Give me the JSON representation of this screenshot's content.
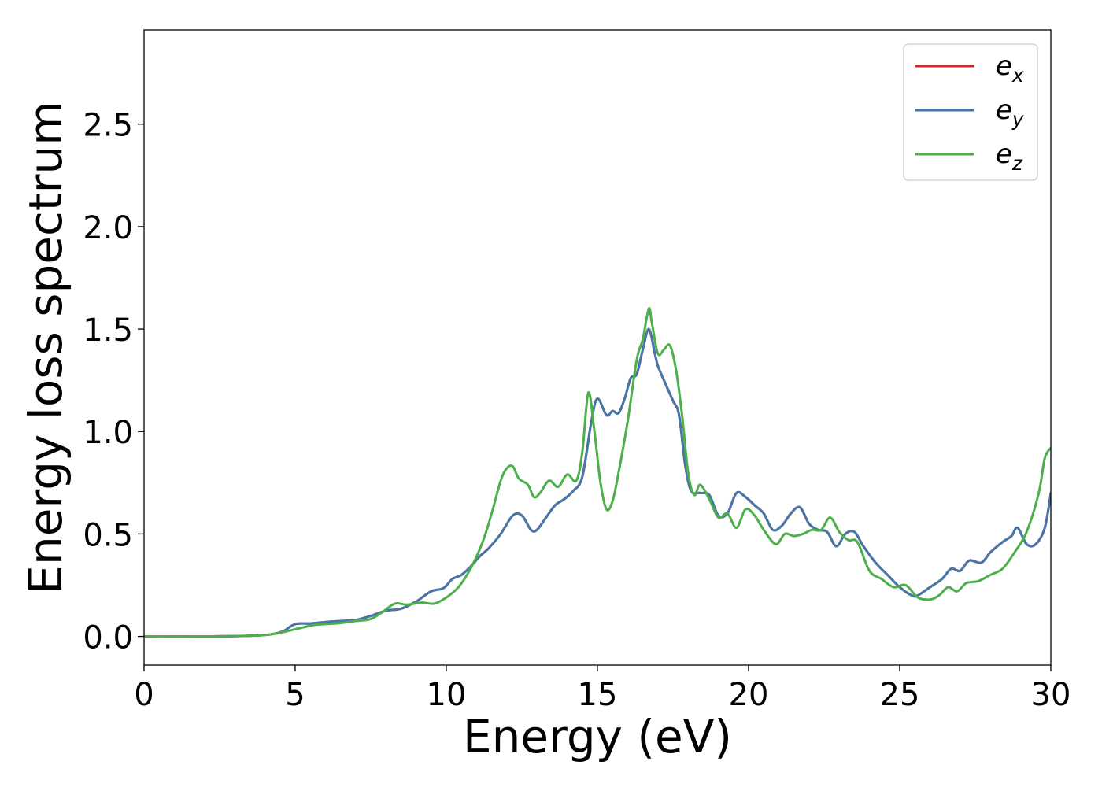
{
  "chart_data": {
    "type": "line",
    "title": "",
    "xlabel": "Energy (eV)",
    "ylabel": "Energy loss spectrum",
    "xlim": [
      0,
      30
    ],
    "ylim": [
      -0.14,
      2.96
    ],
    "xticks": [
      0,
      5,
      10,
      15,
      20,
      25,
      30
    ],
    "xtick_labels": [
      "0",
      "5",
      "10",
      "15",
      "20",
      "25",
      "30"
    ],
    "yticks": [
      0,
      0.5,
      1.0,
      1.5,
      2.0,
      2.5
    ],
    "ytick_labels": [
      "0.0",
      "0.5",
      "1.0",
      "1.5",
      "2.0",
      "2.5"
    ],
    "grid": false,
    "legend_position": "top-right",
    "series": [
      {
        "name": "e_x",
        "legend_base": "e",
        "legend_sub": "x",
        "color": "#d62728",
        "x": [
          0,
          2,
          3.5,
          4.2,
          4.6,
          5.0,
          5.5,
          6.0,
          6.5,
          7.0,
          7.5,
          8.0,
          8.5,
          9.0,
          9.5,
          9.9,
          10.2,
          10.5,
          10.8,
          11.1,
          11.4,
          11.8,
          12.2,
          12.5,
          12.8,
          13.0,
          13.3,
          13.6,
          13.9,
          14.2,
          14.5,
          14.8,
          15.0,
          15.3,
          15.5,
          15.7,
          15.9,
          16.1,
          16.3,
          16.5,
          16.7,
          16.9,
          17.0,
          17.2,
          17.5,
          17.7,
          17.9,
          18.1,
          18.4,
          18.7,
          19.0,
          19.3,
          19.6,
          19.9,
          20.2,
          20.5,
          20.8,
          21.1,
          21.4,
          21.7,
          22.0,
          22.3,
          22.6,
          22.9,
          23.2,
          23.5,
          23.8,
          24.2,
          24.6,
          25.0,
          25.4,
          25.6,
          26.0,
          26.4,
          26.7,
          27.0,
          27.3,
          27.7,
          28.0,
          28.4,
          28.7,
          28.9,
          29.2,
          29.5,
          29.8,
          30.0
        ],
        "y": [
          0,
          0,
          0.003,
          0.01,
          0.025,
          0.06,
          0.063,
          0.07,
          0.075,
          0.08,
          0.1,
          0.125,
          0.135,
          0.17,
          0.22,
          0.235,
          0.28,
          0.3,
          0.34,
          0.39,
          0.43,
          0.5,
          0.59,
          0.59,
          0.52,
          0.52,
          0.58,
          0.64,
          0.67,
          0.71,
          0.78,
          1.05,
          1.16,
          1.08,
          1.1,
          1.09,
          1.16,
          1.26,
          1.28,
          1.4,
          1.5,
          1.38,
          1.32,
          1.25,
          1.15,
          1.08,
          0.84,
          0.71,
          0.7,
          0.69,
          0.59,
          0.6,
          0.7,
          0.68,
          0.64,
          0.6,
          0.52,
          0.54,
          0.6,
          0.63,
          0.55,
          0.52,
          0.51,
          0.44,
          0.5,
          0.51,
          0.44,
          0.36,
          0.3,
          0.24,
          0.2,
          0.2,
          0.24,
          0.28,
          0.33,
          0.32,
          0.37,
          0.36,
          0.41,
          0.46,
          0.49,
          0.53,
          0.45,
          0.45,
          0.53,
          0.7
        ]
      },
      {
        "name": "e_y",
        "legend_base": "e",
        "legend_sub": "y",
        "color": "#4477aa",
        "x": [
          0,
          2,
          3.5,
          4.2,
          4.6,
          5.0,
          5.5,
          6.0,
          6.5,
          7.0,
          7.5,
          8.0,
          8.5,
          9.0,
          9.5,
          9.9,
          10.2,
          10.5,
          10.8,
          11.1,
          11.4,
          11.8,
          12.2,
          12.5,
          12.8,
          13.0,
          13.3,
          13.6,
          13.9,
          14.2,
          14.5,
          14.8,
          15.0,
          15.3,
          15.5,
          15.7,
          15.9,
          16.1,
          16.3,
          16.5,
          16.7,
          16.9,
          17.0,
          17.2,
          17.5,
          17.7,
          17.9,
          18.1,
          18.4,
          18.7,
          19.0,
          19.3,
          19.6,
          19.9,
          20.2,
          20.5,
          20.8,
          21.1,
          21.4,
          21.7,
          22.0,
          22.3,
          22.6,
          22.9,
          23.2,
          23.5,
          23.8,
          24.2,
          24.6,
          25.0,
          25.4,
          25.6,
          26.0,
          26.4,
          26.7,
          27.0,
          27.3,
          27.7,
          28.0,
          28.4,
          28.7,
          28.9,
          29.2,
          29.5,
          29.8,
          30.0
        ],
        "y": [
          0,
          0,
          0.003,
          0.01,
          0.025,
          0.06,
          0.063,
          0.07,
          0.075,
          0.08,
          0.1,
          0.125,
          0.135,
          0.17,
          0.22,
          0.235,
          0.28,
          0.3,
          0.34,
          0.39,
          0.43,
          0.5,
          0.59,
          0.59,
          0.52,
          0.52,
          0.58,
          0.64,
          0.67,
          0.71,
          0.78,
          1.05,
          1.16,
          1.08,
          1.1,
          1.09,
          1.16,
          1.26,
          1.28,
          1.4,
          1.5,
          1.38,
          1.32,
          1.25,
          1.15,
          1.08,
          0.84,
          0.71,
          0.7,
          0.69,
          0.59,
          0.6,
          0.7,
          0.68,
          0.64,
          0.6,
          0.52,
          0.54,
          0.6,
          0.63,
          0.55,
          0.52,
          0.51,
          0.44,
          0.5,
          0.51,
          0.44,
          0.36,
          0.3,
          0.24,
          0.2,
          0.2,
          0.24,
          0.28,
          0.33,
          0.32,
          0.37,
          0.36,
          0.41,
          0.46,
          0.49,
          0.53,
          0.45,
          0.45,
          0.53,
          0.7
        ]
      },
      {
        "name": "e_z",
        "legend_base": "e",
        "legend_sub": "z",
        "color": "#4daf4a",
        "x": [
          0,
          2,
          3.5,
          4.3,
          5.0,
          5.6,
          6.0,
          6.5,
          7.0,
          7.5,
          7.9,
          8.3,
          8.7,
          9.2,
          9.6,
          10.0,
          10.4,
          10.8,
          11.2,
          11.5,
          11.8,
          12.0,
          12.2,
          12.4,
          12.7,
          12.9,
          13.1,
          13.4,
          13.7,
          14.0,
          14.3,
          14.5,
          14.7,
          14.9,
          15.1,
          15.3,
          15.5,
          15.7,
          16.0,
          16.3,
          16.5,
          16.7,
          16.8,
          17.0,
          17.2,
          17.4,
          17.6,
          17.8,
          18.0,
          18.2,
          18.4,
          18.7,
          19.0,
          19.3,
          19.6,
          19.9,
          20.2,
          20.5,
          20.9,
          21.2,
          21.5,
          21.8,
          22.1,
          22.4,
          22.7,
          23.0,
          23.3,
          23.6,
          24.0,
          24.4,
          24.8,
          25.2,
          25.6,
          26.0,
          26.3,
          26.6,
          26.9,
          27.2,
          27.6,
          28.0,
          28.4,
          28.8,
          29.2,
          29.6,
          29.8,
          30.0
        ],
        "y": [
          0,
          0,
          0.003,
          0.012,
          0.035,
          0.055,
          0.06,
          0.065,
          0.075,
          0.085,
          0.12,
          0.16,
          0.155,
          0.165,
          0.16,
          0.19,
          0.24,
          0.33,
          0.46,
          0.6,
          0.76,
          0.82,
          0.83,
          0.77,
          0.74,
          0.68,
          0.7,
          0.76,
          0.73,
          0.79,
          0.76,
          0.9,
          1.19,
          1.0,
          0.75,
          0.62,
          0.66,
          0.8,
          1.05,
          1.35,
          1.45,
          1.6,
          1.53,
          1.38,
          1.4,
          1.42,
          1.3,
          1.08,
          0.8,
          0.69,
          0.74,
          0.67,
          0.58,
          0.6,
          0.53,
          0.62,
          0.59,
          0.52,
          0.45,
          0.5,
          0.49,
          0.5,
          0.52,
          0.52,
          0.58,
          0.51,
          0.47,
          0.46,
          0.32,
          0.28,
          0.24,
          0.25,
          0.19,
          0.18,
          0.2,
          0.24,
          0.22,
          0.26,
          0.27,
          0.3,
          0.33,
          0.41,
          0.51,
          0.7,
          0.87,
          0.92
        ]
      }
    ]
  }
}
